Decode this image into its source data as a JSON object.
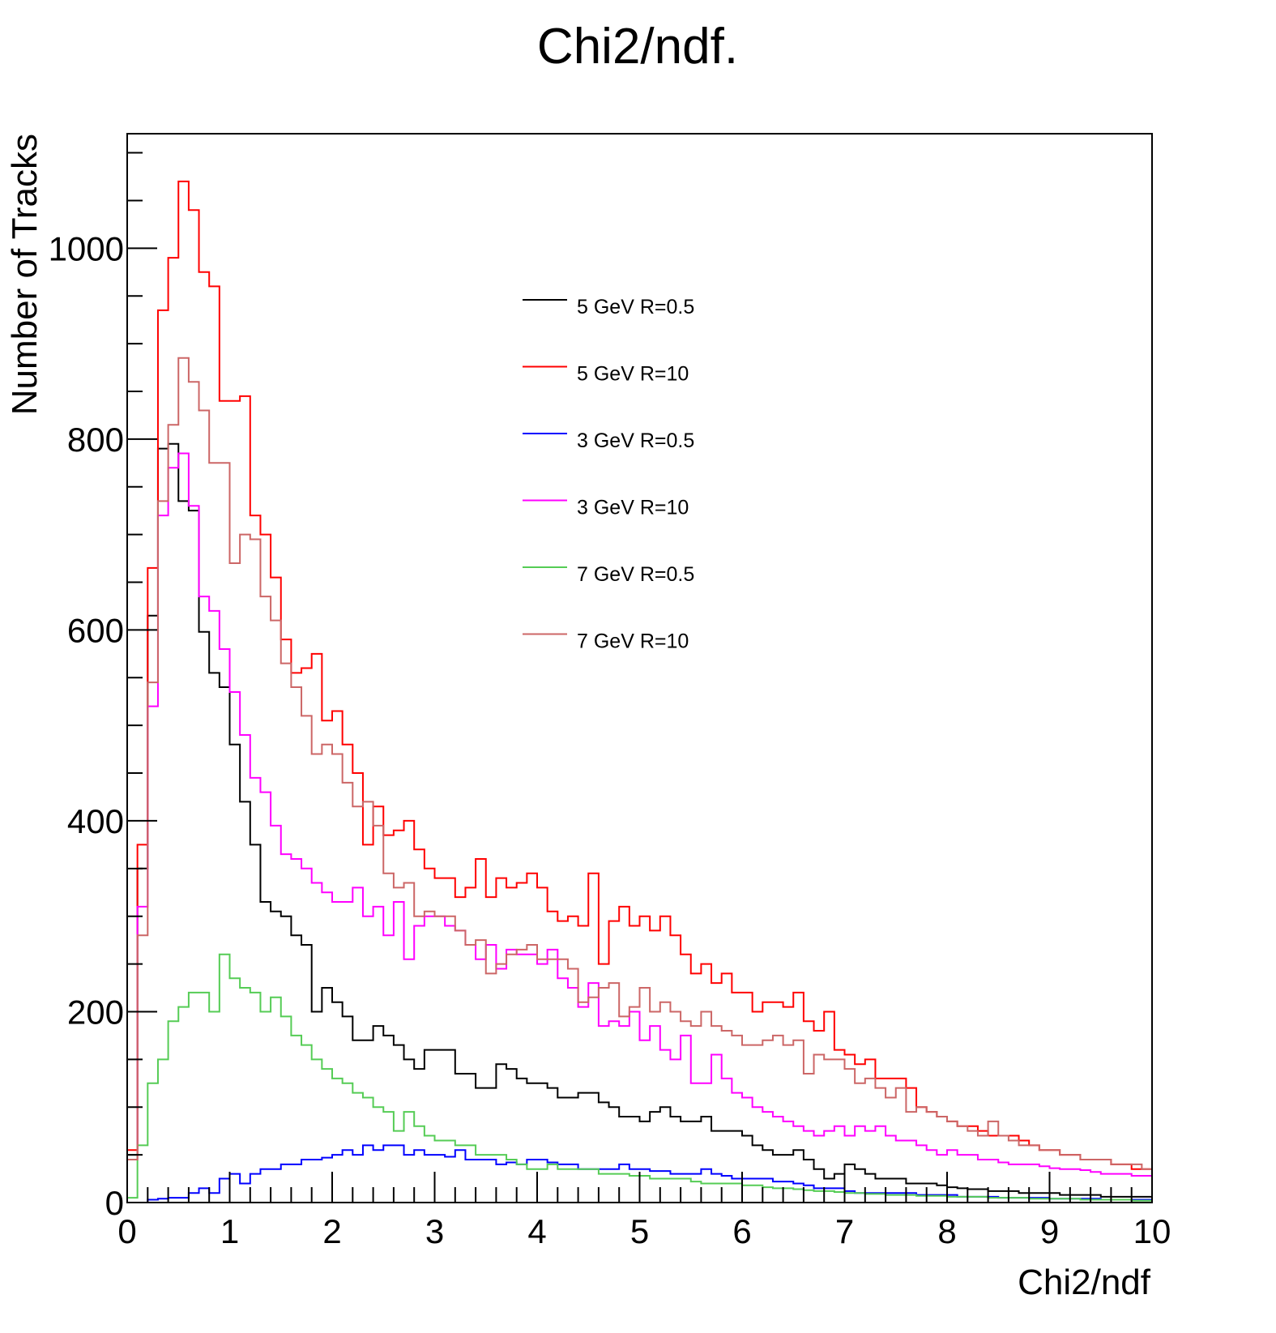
{
  "chart_data": {
    "type": "line",
    "title": "Chi2/ndf.",
    "xlabel": "Chi2/ndf",
    "ylabel": "Number of Tracks",
    "xlim": [
      0,
      10
    ],
    "ylim": [
      0,
      1120
    ],
    "grid": false,
    "legend_position": "top-center",
    "x_ticks": [
      0,
      1,
      2,
      3,
      4,
      5,
      6,
      7,
      8,
      9,
      10
    ],
    "x_tick_labels": [
      "0",
      "1",
      "2",
      "3",
      "4",
      "5",
      "6",
      "7",
      "8",
      "9",
      "10"
    ],
    "y_ticks": [
      0,
      200,
      400,
      600,
      800,
      1000
    ],
    "y_tick_labels": [
      "0",
      "200",
      "400",
      "600",
      "800",
      "1000"
    ],
    "bins": {
      "low": 0,
      "high": 10,
      "count": 100
    },
    "series": [
      {
        "name": "5 GeV R=0.5",
        "color": "#000000",
        "values": [
          50,
          350,
          615,
          790,
          795,
          735,
          725,
          598,
          555,
          540,
          480,
          420,
          375,
          315,
          305,
          300,
          280,
          270,
          200,
          225,
          210,
          195,
          170,
          170,
          185,
          175,
          165,
          150,
          140,
          160,
          160,
          160,
          135,
          135,
          120,
          120,
          145,
          140,
          130,
          125,
          125,
          120,
          110,
          110,
          115,
          115,
          105,
          100,
          90,
          90,
          85,
          95,
          100,
          90,
          85,
          85,
          90,
          75,
          75,
          75,
          70,
          60,
          55,
          50,
          50,
          55,
          45,
          35,
          25,
          30,
          40,
          35,
          30,
          25,
          25,
          25,
          20,
          20,
          20,
          18,
          16,
          15,
          14,
          14,
          12,
          12,
          12,
          10,
          10,
          10,
          10,
          8,
          8,
          8,
          8,
          6,
          6,
          6,
          6,
          6
        ]
      },
      {
        "name": "5 GeV R=10",
        "color": "#ff0000",
        "values": [
          55,
          375,
          665,
          935,
          990,
          1070,
          1040,
          975,
          960,
          840,
          840,
          845,
          720,
          700,
          655,
          590,
          555,
          560,
          575,
          505,
          515,
          480,
          450,
          375,
          415,
          385,
          390,
          400,
          370,
          350,
          340,
          340,
          320,
          330,
          360,
          320,
          340,
          330,
          335,
          345,
          330,
          305,
          295,
          300,
          290,
          345,
          250,
          295,
          310,
          290,
          300,
          285,
          300,
          280,
          260,
          240,
          250,
          230,
          240,
          220,
          220,
          200,
          210,
          210,
          205,
          220,
          190,
          180,
          200,
          160,
          155,
          145,
          150,
          130,
          130,
          130,
          120,
          100,
          95,
          90,
          85,
          80,
          80,
          75,
          70,
          70,
          70,
          65,
          60,
          55,
          55,
          50,
          50,
          45,
          45,
          45,
          40,
          40,
          35,
          35
        ]
      },
      {
        "name": "3 GeV R=0.5",
        "color": "#0000ff",
        "values": [
          0,
          0,
          3,
          4,
          5,
          5,
          10,
          15,
          10,
          25,
          30,
          20,
          30,
          35,
          35,
          40,
          40,
          45,
          45,
          47,
          50,
          55,
          50,
          60,
          55,
          60,
          60,
          50,
          55,
          50,
          50,
          48,
          55,
          45,
          45,
          45,
          40,
          42,
          40,
          45,
          45,
          42,
          40,
          40,
          35,
          35,
          35,
          35,
          40,
          35,
          35,
          33,
          33,
          30,
          30,
          30,
          35,
          30,
          28,
          25,
          25,
          25,
          25,
          22,
          22,
          20,
          18,
          15,
          15,
          15,
          12,
          10,
          10,
          10,
          10,
          10,
          10,
          8,
          8,
          8,
          8,
          6,
          6,
          6,
          6,
          5,
          5,
          5,
          5,
          5,
          4,
          4,
          4,
          4,
          4,
          3,
          3,
          3,
          3,
          3
        ]
      },
      {
        "name": "3 GeV R=10",
        "color": "#ff00ff",
        "values": [
          45,
          310,
          520,
          720,
          770,
          785,
          730,
          635,
          620,
          580,
          535,
          490,
          445,
          430,
          395,
          365,
          360,
          350,
          335,
          325,
          315,
          315,
          330,
          300,
          310,
          280,
          315,
          255,
          290,
          300,
          300,
          290,
          285,
          270,
          255,
          270,
          245,
          265,
          260,
          260,
          250,
          265,
          235,
          225,
          205,
          230,
          185,
          190,
          185,
          200,
          170,
          185,
          160,
          150,
          175,
          125,
          125,
          155,
          130,
          115,
          110,
          100,
          95,
          90,
          85,
          80,
          75,
          70,
          75,
          80,
          70,
          80,
          75,
          80,
          70,
          65,
          65,
          60,
          55,
          50,
          55,
          50,
          50,
          45,
          45,
          42,
          40,
          40,
          40,
          38,
          36,
          35,
          35,
          34,
          32,
          30,
          30,
          30,
          28,
          28
        ]
      },
      {
        "name": "7 GeV R=0.5",
        "color": "#55cc55",
        "values": [
          5,
          60,
          125,
          150,
          190,
          205,
          220,
          220,
          200,
          260,
          235,
          225,
          220,
          200,
          215,
          195,
          175,
          165,
          150,
          140,
          130,
          125,
          115,
          110,
          100,
          95,
          75,
          95,
          80,
          70,
          65,
          65,
          60,
          60,
          50,
          50,
          50,
          45,
          40,
          35,
          35,
          40,
          35,
          35,
          35,
          35,
          30,
          30,
          30,
          28,
          28,
          25,
          25,
          25,
          25,
          22,
          20,
          20,
          20,
          20,
          18,
          18,
          16,
          15,
          15,
          14,
          13,
          12,
          12,
          11,
          10,
          10,
          9,
          9,
          8,
          8,
          8,
          7,
          7,
          7,
          6,
          6,
          6,
          6,
          5,
          5,
          5,
          5,
          4,
          4,
          4,
          4,
          4,
          3,
          3,
          3,
          3,
          3,
          2,
          2
        ]
      },
      {
        "name": "7 GeV R=10",
        "color": "#cc6666",
        "values": [
          45,
          280,
          545,
          735,
          815,
          885,
          860,
          830,
          775,
          775,
          670,
          700,
          695,
          635,
          610,
          565,
          540,
          510,
          470,
          480,
          470,
          440,
          415,
          420,
          395,
          345,
          330,
          335,
          300,
          305,
          300,
          300,
          285,
          270,
          275,
          240,
          250,
          260,
          265,
          270,
          255,
          255,
          255,
          245,
          210,
          215,
          225,
          230,
          195,
          205,
          225,
          200,
          210,
          200,
          190,
          185,
          200,
          185,
          180,
          175,
          165,
          165,
          170,
          175,
          165,
          170,
          135,
          155,
          150,
          150,
          140,
          125,
          130,
          120,
          110,
          120,
          95,
          100,
          95,
          90,
          85,
          80,
          75,
          70,
          85,
          70,
          65,
          60,
          60,
          55,
          55,
          50,
          50,
          45,
          45,
          45,
          40,
          40,
          40,
          35
        ]
      }
    ]
  }
}
